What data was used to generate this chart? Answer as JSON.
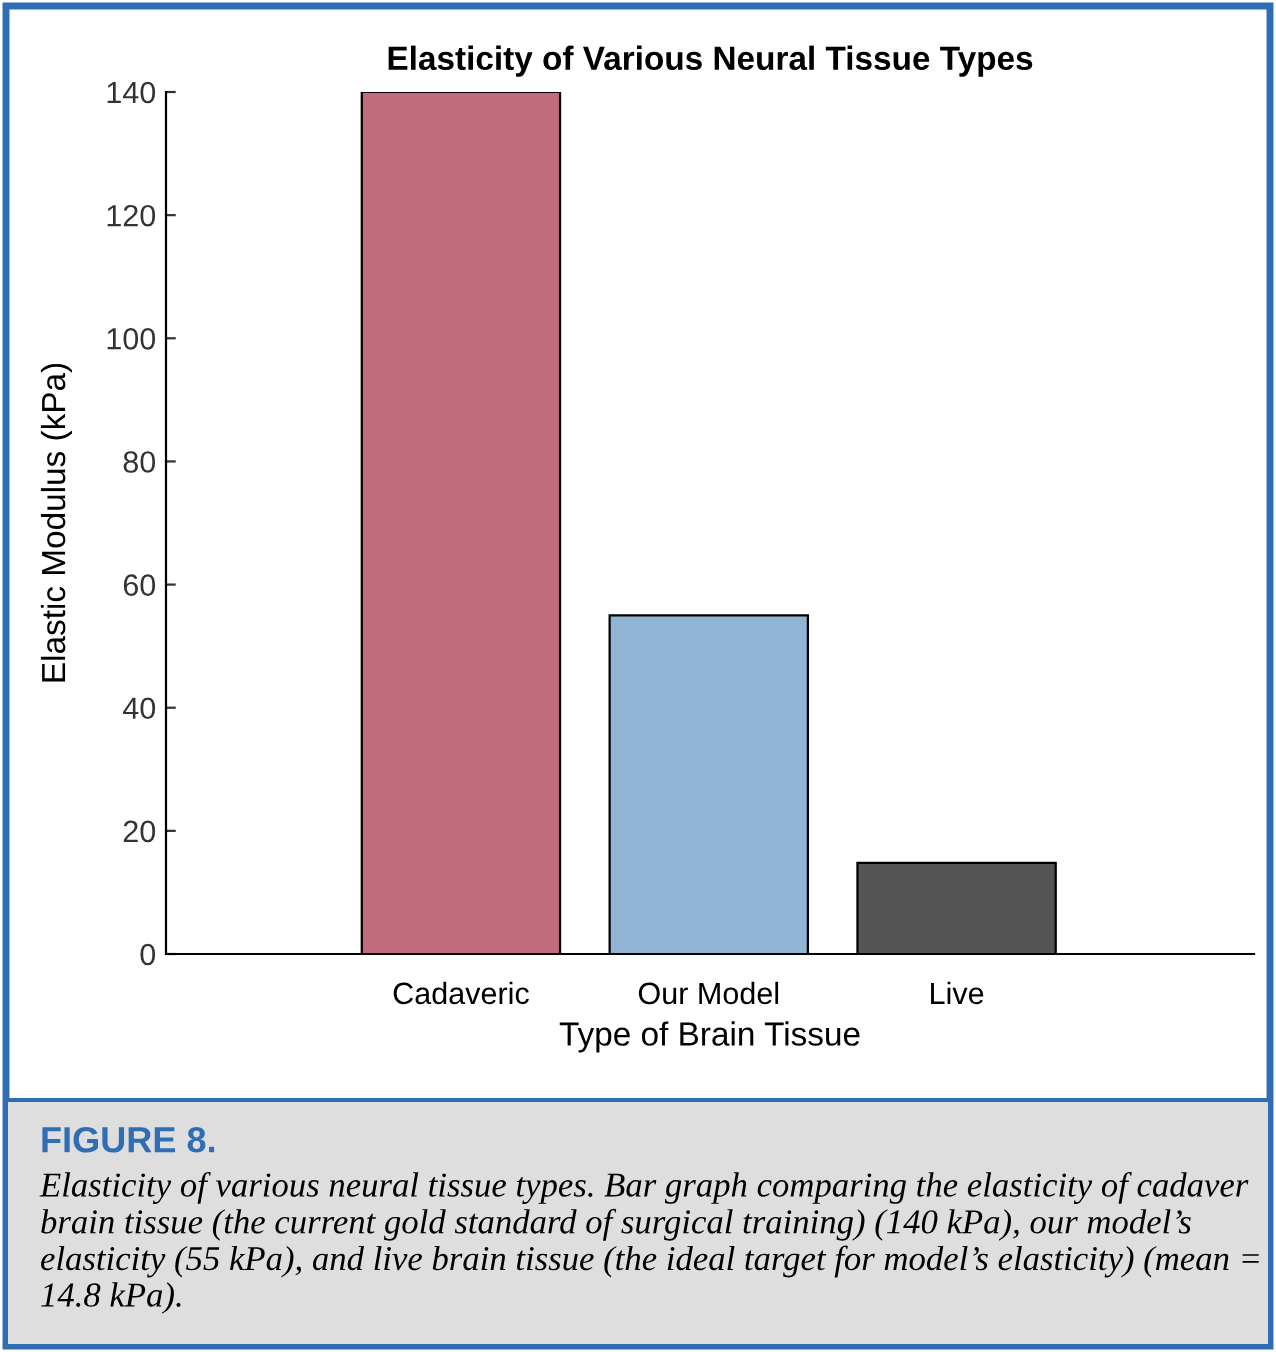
{
  "chart_data": {
    "type": "bar",
    "title": "Elasticity of Various Neural Tissue Types",
    "xlabel": "Type of Brain Tissue",
    "ylabel": "Elastic Modulus (kPa)",
    "categories": [
      "Cadaveric",
      "Our Model",
      "Live"
    ],
    "values": [
      140,
      55,
      14.8
    ],
    "colors": [
      "#c06c7e",
      "#92b4d4",
      "#555555"
    ],
    "ylim": [
      0,
      140
    ],
    "yticks": [
      0,
      20,
      40,
      60,
      80,
      100,
      120,
      140
    ],
    "grid": false,
    "legend": false,
    "annotations": [
      "FIGURE 8.",
      "Elasticity of various neural tissue types. Bar graph comparing the elasticity of cadaver brain tissue (the current gold standard of surgical training) (140 kPa), our model’s elasticity (55 kPa), and live brain tissue (the ideal target for model’s elasticity) (mean = 14.8 kPa)."
    ]
  }
}
